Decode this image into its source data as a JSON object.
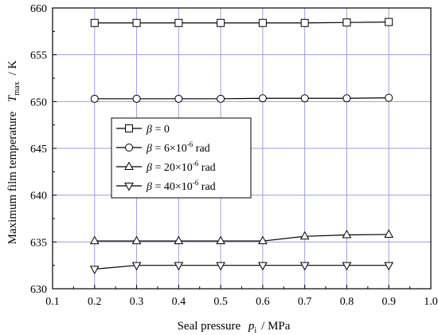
{
  "chart_data": {
    "type": "line",
    "x": [
      0.2,
      0.3,
      0.4,
      0.5,
      0.6,
      0.7,
      0.8,
      0.9
    ],
    "xlim": [
      0.1,
      1.0
    ],
    "ylim": [
      630,
      660
    ],
    "xticks": [
      "0.1",
      "0.2",
      "0.3",
      "0.4",
      "0.5",
      "0.6",
      "0.7",
      "0.8",
      "0.9",
      "1.0"
    ],
    "yticks": [
      "630",
      "635",
      "640",
      "645",
      "650",
      "655",
      "660"
    ],
    "xlabel": {
      "main": "Seal pressure",
      "var": "p",
      "sub": "i",
      "unit": "/  MPa"
    },
    "ylabel": {
      "main": "Maximum film temperature",
      "var": "T",
      "sub": "max",
      "unit": "/  K"
    },
    "grid": true,
    "legend_position": "middle-left",
    "series": [
      {
        "name": "β = 0",
        "legend_sym": "β",
        "legend_rest": " = 0",
        "marker": "square",
        "values": [
          658.4,
          658.4,
          658.4,
          658.4,
          658.4,
          658.4,
          658.45,
          658.5
        ]
      },
      {
        "name": "β = 6×10⁻⁶ rad",
        "legend_sym": "β",
        "legend_rest": " =   6×10",
        "legend_exp": "-6",
        "legend_unit": " rad",
        "marker": "circle",
        "values": [
          650.3,
          650.3,
          650.3,
          650.3,
          650.35,
          650.35,
          650.35,
          650.4
        ]
      },
      {
        "name": "β = 20×10⁻⁶ rad",
        "legend_sym": "β",
        "legend_rest": " = 20×10",
        "legend_exp": "-6",
        "legend_unit": " rad",
        "marker": "triangle-up",
        "values": [
          635.1,
          635.1,
          635.1,
          635.1,
          635.1,
          635.6,
          635.75,
          635.8
        ]
      },
      {
        "name": "β = 40×10⁻⁶ rad",
        "legend_sym": "β",
        "legend_rest": " = 40×10",
        "legend_exp": "-6",
        "legend_unit": " rad",
        "marker": "triangle-down",
        "values": [
          632.1,
          632.5,
          632.5,
          632.5,
          632.5,
          632.5,
          632.5,
          632.5
        ]
      }
    ],
    "colors": {
      "grid": "#9aa0e0",
      "line": "#000000"
    }
  }
}
